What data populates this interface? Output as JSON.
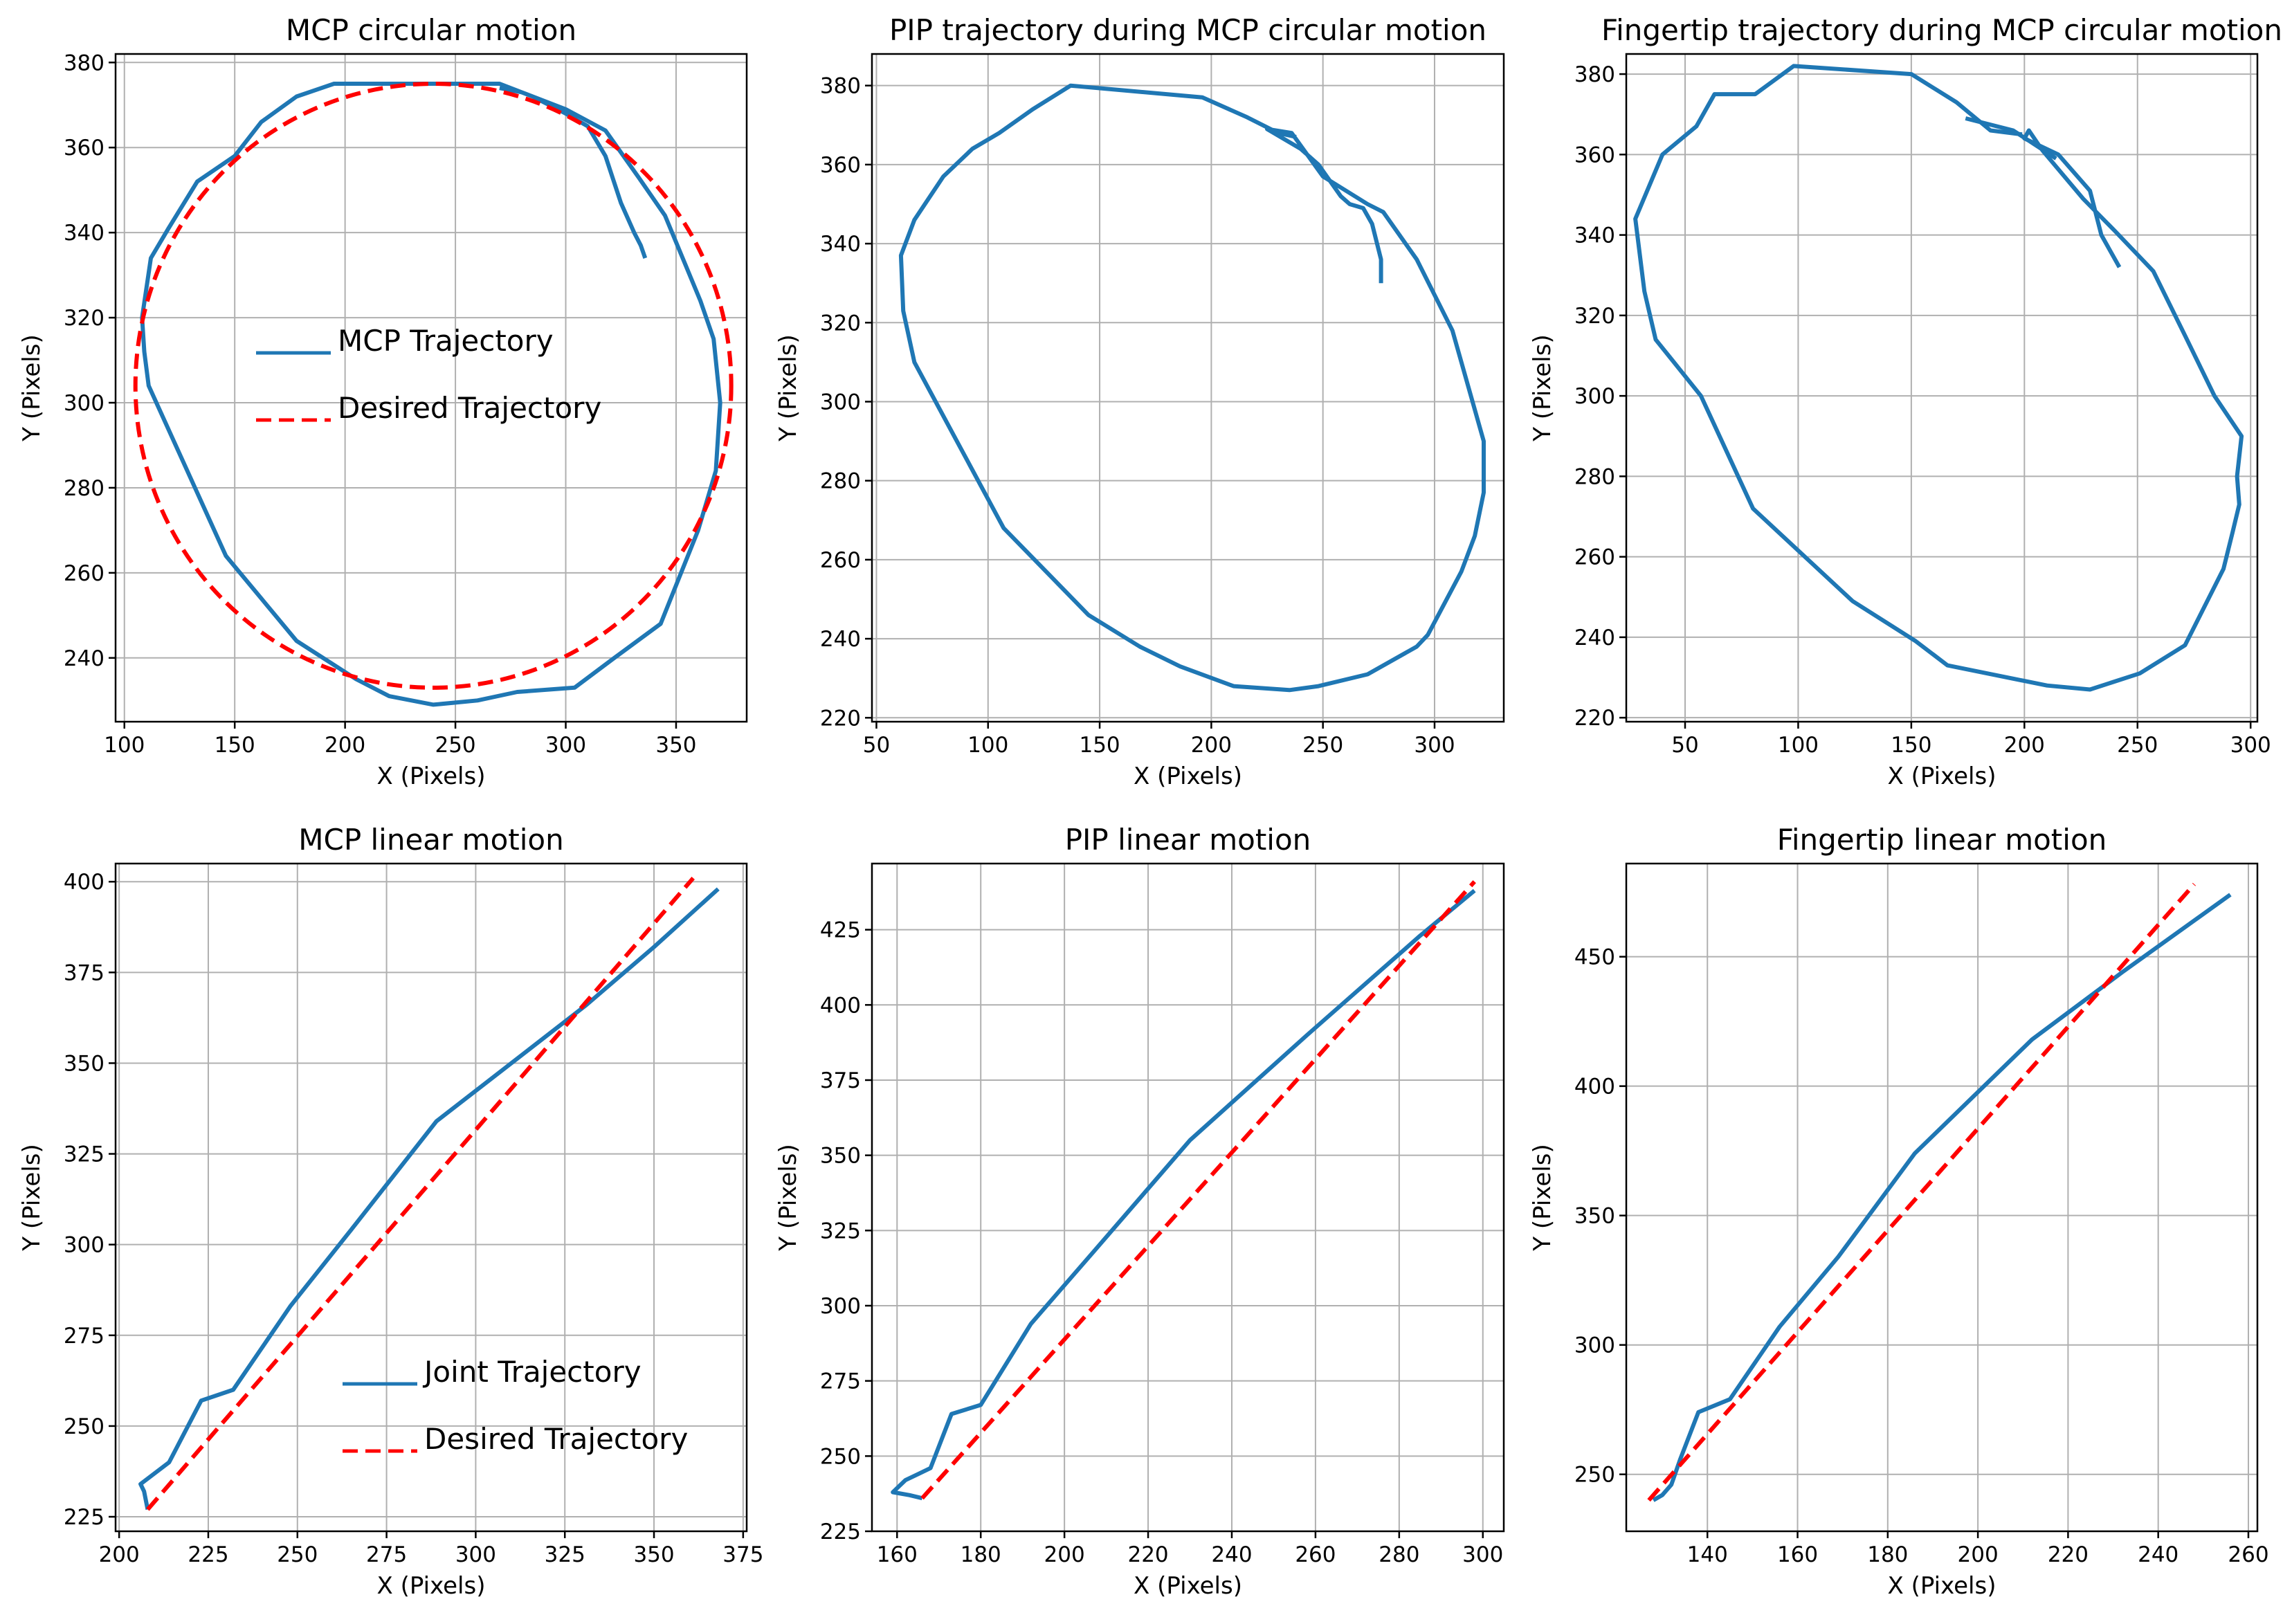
{
  "chart_data": [
    {
      "type": "line",
      "title": "MCP circular motion",
      "xlabel": "X (Pixels)",
      "ylabel": "Y (Pixels)",
      "xlim": [
        96,
        382
      ],
      "ylim": [
        225,
        382
      ],
      "xticks": [
        100,
        150,
        200,
        250,
        300,
        350
      ],
      "yticks": [
        240,
        260,
        280,
        300,
        320,
        340,
        360,
        380
      ],
      "grid": true,
      "legend": "center-left",
      "series": [
        {
          "name": "MCP Trajectory",
          "style": "solid",
          "color": "#1f77b4",
          "x": [
            336,
            334,
            331,
            325,
            318,
            310,
            300,
            285,
            270,
            240,
            210,
            195,
            178,
            162,
            150,
            133,
            120,
            112,
            108,
            109,
            111,
            146,
            178,
            205,
            220,
            240,
            260,
            278,
            304,
            322,
            343,
            360,
            368,
            370,
            367,
            361,
            345,
            333,
            318,
            300,
            280,
            270
          ],
          "y": [
            334,
            337,
            340,
            347,
            358,
            365,
            368,
            372,
            375,
            375,
            375,
            375,
            372,
            366,
            358,
            352,
            341,
            334,
            320,
            312,
            304,
            264,
            244,
            235,
            231,
            229,
            230,
            232,
            233,
            240,
            248,
            270,
            284,
            300,
            315,
            324,
            344,
            353,
            364,
            369,
            373,
            374
          ]
        },
        {
          "name": "Desired Trajectory",
          "style": "dashed",
          "color": "#ff0000",
          "shape": "circle",
          "center": [
            240,
            304
          ],
          "radius": [
            135,
            71
          ]
        }
      ]
    },
    {
      "type": "line",
      "title": "PIP trajectory during MCP circular motion",
      "xlabel": "X (Pixels)",
      "ylabel": "Y (Pixels)",
      "xlim": [
        48,
        331
      ],
      "ylim": [
        219,
        388
      ],
      "xticks": [
        50,
        100,
        150,
        200,
        250,
        300
      ],
      "yticks": [
        220,
        240,
        260,
        280,
        300,
        320,
        340,
        360,
        380
      ],
      "grid": true,
      "legend": "none",
      "series": [
        {
          "name": "",
          "style": "solid",
          "color": "#1f77b4",
          "x": [
            276,
            276,
            272,
            268,
            262,
            258,
            248,
            240,
            225,
            236,
            250,
            270,
            277,
            292,
            308,
            322,
            322,
            318,
            312,
            297,
            292,
            270,
            248,
            235,
            210,
            186,
            168,
            145,
            107,
            67,
            62,
            61,
            67,
            80,
            93,
            105,
            120,
            137,
            196,
            216,
            230,
            238
          ],
          "y": [
            330,
            336,
            345,
            349,
            350,
            352,
            360,
            364,
            369,
            368,
            357,
            350,
            348,
            336,
            318,
            290,
            277,
            266,
            257,
            241,
            238,
            231,
            228,
            227,
            228,
            233,
            238,
            246,
            268,
            310,
            323,
            337,
            346,
            357,
            364,
            368,
            374,
            380,
            377,
            372,
            368,
            367
          ]
        }
      ]
    },
    {
      "type": "line",
      "title": "Fingertip trajectory during MCP circular motion",
      "xlabel": "X (Pixels)",
      "ylabel": "Y (Pixels)",
      "xlim": [
        24,
        303
      ],
      "ylim": [
        219,
        385
      ],
      "xticks": [
        50,
        100,
        150,
        200,
        250,
        300
      ],
      "yticks": [
        220,
        240,
        260,
        280,
        300,
        320,
        340,
        360,
        380
      ],
      "grid": true,
      "legend": "none",
      "series": [
        {
          "name": "",
          "style": "solid",
          "color": "#1f77b4",
          "x": [
            242,
            238,
            234,
            229,
            215,
            200,
            202,
            208,
            226,
            240,
            257,
            271,
            284,
            296,
            294,
            295,
            292,
            288,
            271,
            251,
            229,
            210,
            166,
            152,
            124,
            80,
            57,
            37,
            32,
            28,
            40,
            55,
            63,
            81,
            98,
            150,
            170,
            185,
            199
          ],
          "y": [
            332,
            336,
            340,
            351,
            360,
            364,
            366,
            361,
            349,
            341,
            331,
            315,
            300,
            290,
            280,
            273,
            266,
            257,
            238,
            231,
            227,
            228,
            233,
            239,
            249,
            272,
            300,
            314,
            326,
            344,
            360,
            367,
            375,
            375,
            382,
            380,
            373,
            366,
            365
          ]
        },
        {
          "name": "",
          "style": "solid",
          "color": "#1f77b4",
          "x": [
            174,
            195,
            214
          ],
          "y": [
            369,
            366,
            359
          ]
        }
      ]
    },
    {
      "type": "line",
      "title": "MCP linear motion",
      "xlabel": "X (Pixels)",
      "ylabel": "Y (Pixels)",
      "xlim": [
        199,
        376
      ],
      "ylim": [
        221,
        405
      ],
      "xticks": [
        200,
        225,
        250,
        275,
        300,
        325,
        350,
        375
      ],
      "yticks": [
        225,
        250,
        275,
        300,
        325,
        350,
        375,
        400
      ],
      "grid": true,
      "legend": "lower-right",
      "series": [
        {
          "name": "Joint Trajectory",
          "style": "solid",
          "color": "#1f77b4",
          "x": [
            208,
            207,
            206,
            214,
            223,
            232,
            248,
            265,
            289,
            310,
            331,
            350,
            368
          ],
          "y": [
            227,
            232,
            234,
            240,
            257,
            260,
            283,
            304,
            334,
            350,
            366,
            382,
            398
          ]
        },
        {
          "name": "Desired Trajectory",
          "style": "dashed",
          "color": "#ff0000",
          "x": [
            208,
            361
          ],
          "y": [
            227,
            401
          ]
        }
      ]
    },
    {
      "type": "line",
      "title": "PIP linear motion",
      "xlabel": "X (Pixels)",
      "ylabel": "Y (Pixels)",
      "xlim": [
        154,
        305
      ],
      "ylim": [
        225,
        447
      ],
      "xticks": [
        160,
        180,
        200,
        220,
        240,
        260,
        280,
        300
      ],
      "yticks": [
        225,
        250,
        275,
        300,
        325,
        350,
        375,
        400,
        425
      ],
      "grid": true,
      "legend": "none",
      "series": [
        {
          "name": "",
          "style": "solid",
          "color": "#1f77b4",
          "x": [
            166,
            163,
            159,
            162,
            165,
            168,
            173,
            180,
            192,
            207,
            230,
            258,
            285,
            298
          ],
          "y": [
            236,
            237,
            238,
            242,
            244,
            246,
            264,
            267,
            294,
            318,
            355,
            390,
            423,
            438
          ]
        },
        {
          "name": "",
          "style": "dashed",
          "color": "#ff0000",
          "x": [
            166,
            298
          ],
          "y": [
            236,
            441
          ]
        }
      ]
    },
    {
      "type": "line",
      "title": "Fingertip linear motion",
      "xlabel": "X (Pixels)",
      "ylabel": "Y (Pixels)",
      "xlim": [
        122,
        262
      ],
      "ylim": [
        228,
        486
      ],
      "xticks": [
        140,
        160,
        180,
        200,
        220,
        240,
        260
      ],
      "yticks": [
        250,
        300,
        350,
        400,
        450
      ],
      "grid": true,
      "legend": "none",
      "series": [
        {
          "name": "",
          "style": "solid",
          "color": "#1f77b4",
          "x": [
            128,
            130,
            132,
            134,
            138,
            145,
            156,
            169,
            186,
            212,
            232,
            256
          ],
          "y": [
            240,
            242,
            246,
            256,
            274,
            279,
            307,
            334,
            374,
            418,
            444,
            474
          ]
        },
        {
          "name": "",
          "style": "dashed",
          "color": "#ff0000",
          "x": [
            127,
            248
          ],
          "y": [
            240,
            478
          ]
        }
      ]
    }
  ]
}
